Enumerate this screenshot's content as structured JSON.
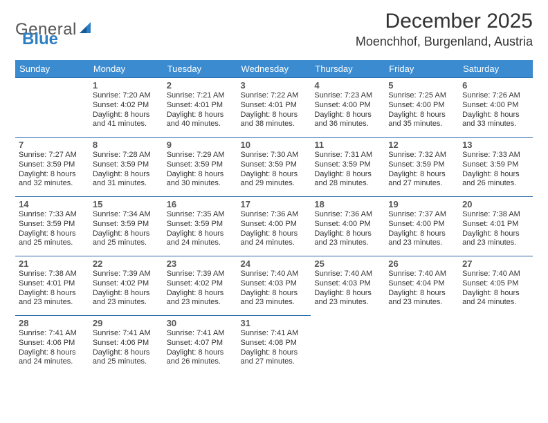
{
  "logo": {
    "general": "General",
    "blue": "Blue"
  },
  "title": "December 2025",
  "location": "Moenchhof, Burgenland, Austria",
  "colors": {
    "header_bg": "#3a8bd0",
    "header_text": "#ffffff",
    "row_border": "#2a6aa8",
    "accent_blue": "#2d7fc4",
    "body_text": "#333333"
  },
  "weekdays": [
    "Sunday",
    "Monday",
    "Tuesday",
    "Wednesday",
    "Thursday",
    "Friday",
    "Saturday"
  ],
  "rows": [
    [
      {
        "day": "",
        "sunrise": "",
        "sunset": "",
        "daylight1": "",
        "daylight2": ""
      },
      {
        "day": "1",
        "sunrise": "Sunrise: 7:20 AM",
        "sunset": "Sunset: 4:02 PM",
        "daylight1": "Daylight: 8 hours",
        "daylight2": "and 41 minutes."
      },
      {
        "day": "2",
        "sunrise": "Sunrise: 7:21 AM",
        "sunset": "Sunset: 4:01 PM",
        "daylight1": "Daylight: 8 hours",
        "daylight2": "and 40 minutes."
      },
      {
        "day": "3",
        "sunrise": "Sunrise: 7:22 AM",
        "sunset": "Sunset: 4:01 PM",
        "daylight1": "Daylight: 8 hours",
        "daylight2": "and 38 minutes."
      },
      {
        "day": "4",
        "sunrise": "Sunrise: 7:23 AM",
        "sunset": "Sunset: 4:00 PM",
        "daylight1": "Daylight: 8 hours",
        "daylight2": "and 36 minutes."
      },
      {
        "day": "5",
        "sunrise": "Sunrise: 7:25 AM",
        "sunset": "Sunset: 4:00 PM",
        "daylight1": "Daylight: 8 hours",
        "daylight2": "and 35 minutes."
      },
      {
        "day": "6",
        "sunrise": "Sunrise: 7:26 AM",
        "sunset": "Sunset: 4:00 PM",
        "daylight1": "Daylight: 8 hours",
        "daylight2": "and 33 minutes."
      }
    ],
    [
      {
        "day": "7",
        "sunrise": "Sunrise: 7:27 AM",
        "sunset": "Sunset: 3:59 PM",
        "daylight1": "Daylight: 8 hours",
        "daylight2": "and 32 minutes."
      },
      {
        "day": "8",
        "sunrise": "Sunrise: 7:28 AM",
        "sunset": "Sunset: 3:59 PM",
        "daylight1": "Daylight: 8 hours",
        "daylight2": "and 31 minutes."
      },
      {
        "day": "9",
        "sunrise": "Sunrise: 7:29 AM",
        "sunset": "Sunset: 3:59 PM",
        "daylight1": "Daylight: 8 hours",
        "daylight2": "and 30 minutes."
      },
      {
        "day": "10",
        "sunrise": "Sunrise: 7:30 AM",
        "sunset": "Sunset: 3:59 PM",
        "daylight1": "Daylight: 8 hours",
        "daylight2": "and 29 minutes."
      },
      {
        "day": "11",
        "sunrise": "Sunrise: 7:31 AM",
        "sunset": "Sunset: 3:59 PM",
        "daylight1": "Daylight: 8 hours",
        "daylight2": "and 28 minutes."
      },
      {
        "day": "12",
        "sunrise": "Sunrise: 7:32 AM",
        "sunset": "Sunset: 3:59 PM",
        "daylight1": "Daylight: 8 hours",
        "daylight2": "and 27 minutes."
      },
      {
        "day": "13",
        "sunrise": "Sunrise: 7:33 AM",
        "sunset": "Sunset: 3:59 PM",
        "daylight1": "Daylight: 8 hours",
        "daylight2": "and 26 minutes."
      }
    ],
    [
      {
        "day": "14",
        "sunrise": "Sunrise: 7:33 AM",
        "sunset": "Sunset: 3:59 PM",
        "daylight1": "Daylight: 8 hours",
        "daylight2": "and 25 minutes."
      },
      {
        "day": "15",
        "sunrise": "Sunrise: 7:34 AM",
        "sunset": "Sunset: 3:59 PM",
        "daylight1": "Daylight: 8 hours",
        "daylight2": "and 25 minutes."
      },
      {
        "day": "16",
        "sunrise": "Sunrise: 7:35 AM",
        "sunset": "Sunset: 3:59 PM",
        "daylight1": "Daylight: 8 hours",
        "daylight2": "and 24 minutes."
      },
      {
        "day": "17",
        "sunrise": "Sunrise: 7:36 AM",
        "sunset": "Sunset: 4:00 PM",
        "daylight1": "Daylight: 8 hours",
        "daylight2": "and 24 minutes."
      },
      {
        "day": "18",
        "sunrise": "Sunrise: 7:36 AM",
        "sunset": "Sunset: 4:00 PM",
        "daylight1": "Daylight: 8 hours",
        "daylight2": "and 23 minutes."
      },
      {
        "day": "19",
        "sunrise": "Sunrise: 7:37 AM",
        "sunset": "Sunset: 4:00 PM",
        "daylight1": "Daylight: 8 hours",
        "daylight2": "and 23 minutes."
      },
      {
        "day": "20",
        "sunrise": "Sunrise: 7:38 AM",
        "sunset": "Sunset: 4:01 PM",
        "daylight1": "Daylight: 8 hours",
        "daylight2": "and 23 minutes."
      }
    ],
    [
      {
        "day": "21",
        "sunrise": "Sunrise: 7:38 AM",
        "sunset": "Sunset: 4:01 PM",
        "daylight1": "Daylight: 8 hours",
        "daylight2": "and 23 minutes."
      },
      {
        "day": "22",
        "sunrise": "Sunrise: 7:39 AM",
        "sunset": "Sunset: 4:02 PM",
        "daylight1": "Daylight: 8 hours",
        "daylight2": "and 23 minutes."
      },
      {
        "day": "23",
        "sunrise": "Sunrise: 7:39 AM",
        "sunset": "Sunset: 4:02 PM",
        "daylight1": "Daylight: 8 hours",
        "daylight2": "and 23 minutes."
      },
      {
        "day": "24",
        "sunrise": "Sunrise: 7:40 AM",
        "sunset": "Sunset: 4:03 PM",
        "daylight1": "Daylight: 8 hours",
        "daylight2": "and 23 minutes."
      },
      {
        "day": "25",
        "sunrise": "Sunrise: 7:40 AM",
        "sunset": "Sunset: 4:03 PM",
        "daylight1": "Daylight: 8 hours",
        "daylight2": "and 23 minutes."
      },
      {
        "day": "26",
        "sunrise": "Sunrise: 7:40 AM",
        "sunset": "Sunset: 4:04 PM",
        "daylight1": "Daylight: 8 hours",
        "daylight2": "and 23 minutes."
      },
      {
        "day": "27",
        "sunrise": "Sunrise: 7:40 AM",
        "sunset": "Sunset: 4:05 PM",
        "daylight1": "Daylight: 8 hours",
        "daylight2": "and 24 minutes."
      }
    ],
    [
      {
        "day": "28",
        "sunrise": "Sunrise: 7:41 AM",
        "sunset": "Sunset: 4:06 PM",
        "daylight1": "Daylight: 8 hours",
        "daylight2": "and 24 minutes."
      },
      {
        "day": "29",
        "sunrise": "Sunrise: 7:41 AM",
        "sunset": "Sunset: 4:06 PM",
        "daylight1": "Daylight: 8 hours",
        "daylight2": "and 25 minutes."
      },
      {
        "day": "30",
        "sunrise": "Sunrise: 7:41 AM",
        "sunset": "Sunset: 4:07 PM",
        "daylight1": "Daylight: 8 hours",
        "daylight2": "and 26 minutes."
      },
      {
        "day": "31",
        "sunrise": "Sunrise: 7:41 AM",
        "sunset": "Sunset: 4:08 PM",
        "daylight1": "Daylight: 8 hours",
        "daylight2": "and 27 minutes."
      },
      {
        "day": "",
        "sunrise": "",
        "sunset": "",
        "daylight1": "",
        "daylight2": ""
      },
      {
        "day": "",
        "sunrise": "",
        "sunset": "",
        "daylight1": "",
        "daylight2": ""
      },
      {
        "day": "",
        "sunrise": "",
        "sunset": "",
        "daylight1": "",
        "daylight2": ""
      }
    ]
  ]
}
